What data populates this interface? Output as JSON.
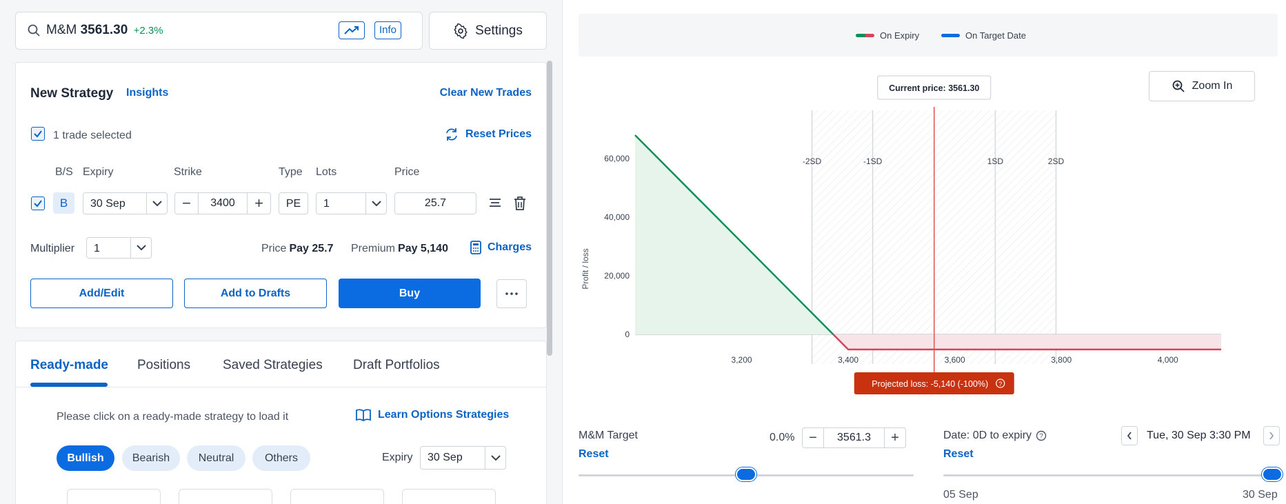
{
  "search": {
    "symbol": "M&M",
    "price": "3561.30",
    "change": "+2.3%",
    "info_label": "Info",
    "settings_label": "Settings"
  },
  "strategy": {
    "title": "New Strategy",
    "insights_label": "Insights",
    "clear_label": "Clear New Trades",
    "trades_selected": "1 trade selected",
    "reset_prices_label": "Reset Prices",
    "columns": [
      "B/S",
      "Expiry",
      "Strike",
      "Type",
      "Lots",
      "Price"
    ],
    "trade": {
      "side": "B",
      "expiry": "30 Sep",
      "strike": "3400",
      "type": "PE",
      "lots": "1",
      "price": "25.7"
    },
    "multiplier_label": "Multiplier",
    "multiplier_value": "1",
    "price_label": "Price",
    "price_value": "Pay 25.7",
    "premium_label": "Premium",
    "premium_value": "Pay 5,140",
    "charges_label": "Charges",
    "buttons": {
      "add_edit": "Add/Edit",
      "add_drafts": "Add to Drafts",
      "buy": "Buy"
    }
  },
  "lower": {
    "tabs": [
      "Ready-made",
      "Positions",
      "Saved Strategies",
      "Draft Portfolios"
    ],
    "hint": "Please click on a ready-made strategy to load it",
    "learn_label": "Learn Options Strategies",
    "filters": [
      "Bullish",
      "Bearish",
      "Neutral",
      "Others"
    ],
    "expiry_label": "Expiry",
    "expiry_value": "30 Sep"
  },
  "chart": {
    "legend": [
      "On Expiry",
      "On Target Date"
    ],
    "zoom_label": "Zoom In",
    "current_price_label": "Current price: 3561.30",
    "projected_label": "Projected loss: -5,140 (-100%)",
    "colors": {
      "profit": "#0a8f55",
      "loss": "#d6435b",
      "target": "#0b6be0",
      "current": "#e05252",
      "badge": "#c8320f"
    }
  },
  "chart_data": {
    "type": "line",
    "ylabel": "Profit / loss",
    "xlabel": "",
    "x_ticks": [
      "3,200",
      "3,400",
      "3,600",
      "3,800",
      "4,000"
    ],
    "x_tick_values": [
      3200,
      3400,
      3600,
      3800,
      4000
    ],
    "y_ticks": [
      "60,000",
      "40,000",
      "20,000",
      "0"
    ],
    "y_tick_values": [
      60000,
      40000,
      20000,
      0
    ],
    "xlim": [
      3000,
      4100
    ],
    "ylim": [
      -5140,
      69000
    ],
    "sd_markers": [
      {
        "label": "-2SD",
        "value": 3332
      },
      {
        "label": "-1SD",
        "value": 3446
      },
      {
        "label": "1SD",
        "value": 3676
      },
      {
        "label": "2SD",
        "value": 3790
      }
    ],
    "current_price": 3561.3,
    "series": [
      {
        "name": "On Expiry",
        "x": [
          3000,
          3400,
          4100
        ],
        "y": [
          68000,
          -5140,
          -5140
        ]
      }
    ]
  },
  "controls": {
    "target_label": "M&M Target",
    "reset_label": "Reset",
    "target_pct": "0.0%",
    "target_value": "3561.3",
    "date_label": "Date: 0D to expiry",
    "date_value": "Tue, 30 Sep 3:30 PM",
    "date_min": "05 Sep",
    "date_max": "30 Sep",
    "target_slider_fraction": 0.5,
    "date_slider_fraction": 1.0
  }
}
